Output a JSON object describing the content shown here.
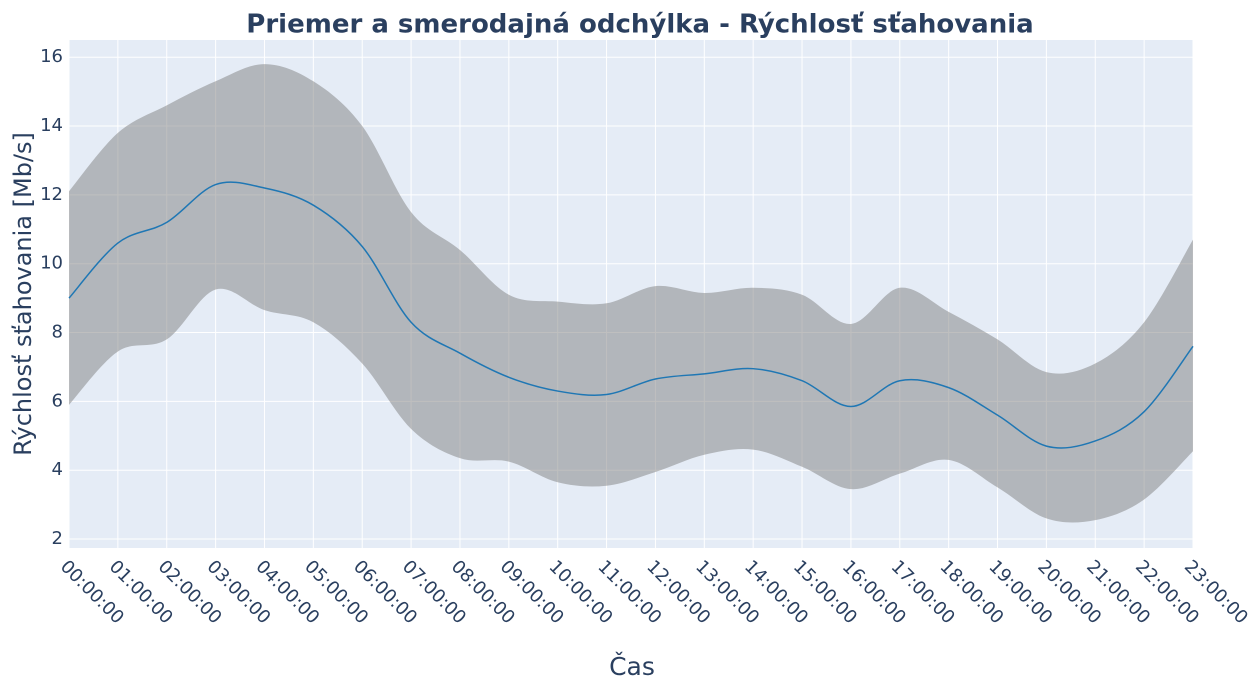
{
  "chart_data": {
    "type": "line",
    "title": "Priemer a smerodajná odchýlka - Rýchlosť sťahovania",
    "x_label": "Čas",
    "y_label": "Rýchlosť sťahovania [Mb/s]",
    "categories": [
      "00:00:00",
      "01:00:00",
      "02:00:00",
      "03:00:00",
      "04:00:00",
      "05:00:00",
      "06:00:00",
      "07:00:00",
      "08:00:00",
      "09:00:00",
      "10:00:00",
      "11:00:00",
      "12:00:00",
      "13:00:00",
      "14:00:00",
      "15:00:00",
      "16:00:00",
      "17:00:00",
      "18:00:00",
      "19:00:00",
      "20:00:00",
      "21:00:00",
      "22:00:00",
      "23:00:00"
    ],
    "series": [
      {
        "color": "#1f77b4",
        "values": [
          9.0,
          10.6,
          11.2,
          12.3,
          12.2,
          11.7,
          10.5,
          8.3,
          7.4,
          6.7,
          6.3,
          6.2,
          6.65,
          6.8,
          6.95,
          6.6,
          5.85,
          6.6,
          6.4,
          5.6,
          4.7,
          4.85,
          5.7,
          7.6
        ]
      }
    ],
    "band": {
      "color": "rgba(128,128,128,0.5)",
      "upper": [
        12.1,
        13.8,
        14.6,
        15.3,
        15.8,
        15.3,
        14.0,
        11.5,
        10.4,
        9.1,
        8.9,
        8.85,
        9.35,
        9.15,
        9.3,
        9.1,
        8.25,
        9.3,
        8.6,
        7.8,
        6.85,
        7.1,
        8.3,
        10.7
      ],
      "lower": [
        5.9,
        7.45,
        7.8,
        9.25,
        8.65,
        8.3,
        7.1,
        5.2,
        4.35,
        4.25,
        3.65,
        3.55,
        3.95,
        4.45,
        4.6,
        4.1,
        3.45,
        3.9,
        4.3,
        3.5,
        2.6,
        2.55,
        3.15,
        4.55
      ]
    },
    "ylim": [
      1.74,
      16.5
    ],
    "yticks": [
      2,
      4,
      6,
      8,
      10,
      12,
      14,
      16
    ],
    "grid": true
  }
}
